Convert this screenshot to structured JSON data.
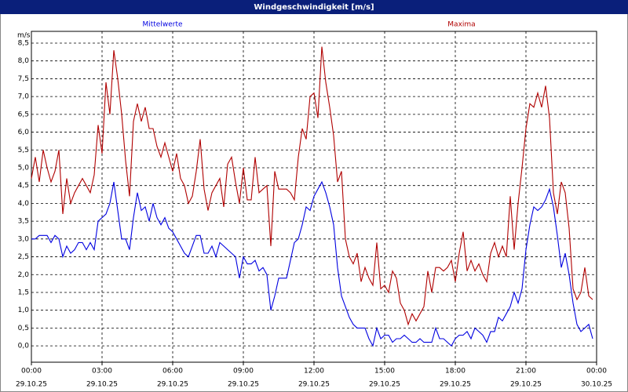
{
  "chart_data": {
    "type": "line",
    "title": "Windgeschwindigkeit [m/s]",
    "y_label": "m/s",
    "x": [
      0,
      10,
      20,
      30,
      40,
      50,
      60,
      70,
      80,
      90,
      100,
      110,
      120,
      130,
      140,
      150,
      160,
      170,
      180,
      190,
      200,
      210,
      220,
      230,
      240,
      250,
      260,
      270,
      280,
      290,
      300,
      310,
      320,
      330,
      340,
      350,
      360,
      370,
      380,
      390,
      400,
      410,
      420,
      430,
      440,
      450,
      460,
      470,
      480,
      490,
      500,
      510,
      520,
      530,
      540,
      550,
      560,
      570,
      580,
      590,
      600,
      610,
      620,
      630,
      640,
      650,
      660,
      670,
      680,
      690,
      700,
      710,
      720,
      730,
      740,
      750,
      760,
      770,
      780,
      790,
      800,
      810,
      820,
      830,
      840,
      850,
      860,
      870,
      880,
      890,
      900,
      910,
      920,
      930,
      940,
      950,
      960,
      970,
      980,
      990,
      1000,
      1010,
      1020,
      1030,
      1040,
      1050,
      1060,
      1070,
      1080,
      1090,
      1100,
      1110,
      1120,
      1130,
      1140,
      1150,
      1160,
      1170,
      1180,
      1190,
      1200,
      1210,
      1220,
      1230,
      1240,
      1250,
      1260,
      1270,
      1280,
      1290,
      1300,
      1310,
      1320,
      1330,
      1340,
      1350,
      1360,
      1370,
      1380,
      1390,
      1400,
      1410,
      1420,
      1430,
      1440
    ],
    "series": [
      {
        "name": "Mittelwerte",
        "color": "#0000e0",
        "values": [
          3.0,
          3.0,
          3.1,
          3.1,
          3.1,
          2.9,
          3.1,
          3.0,
          2.5,
          2.8,
          2.6,
          2.7,
          2.9,
          2.9,
          2.7,
          2.9,
          2.7,
          3.5,
          3.6,
          3.7,
          4.0,
          4.6,
          3.8,
          3.0,
          3.0,
          2.7,
          3.6,
          4.3,
          3.8,
          3.9,
          3.5,
          4.0,
          3.6,
          3.4,
          3.6,
          3.3,
          3.2,
          3.0,
          2.8,
          2.6,
          2.5,
          2.8,
          3.1,
          3.1,
          2.6,
          2.6,
          2.8,
          2.5,
          2.9,
          2.8,
          2.7,
          2.6,
          2.5,
          1.9,
          2.5,
          2.3,
          2.3,
          2.4,
          2.1,
          2.2,
          2.0,
          1.0,
          1.4,
          1.9,
          1.9,
          1.9,
          2.4,
          2.9,
          3.0,
          3.4,
          3.9,
          3.8,
          4.2,
          4.4,
          4.6,
          4.3,
          3.9,
          3.4,
          2.2,
          1.4,
          1.1,
          0.8,
          0.6,
          0.5,
          0.5,
          0.5,
          0.2,
          0.0,
          0.5,
          0.2,
          0.3,
          0.3,
          0.1,
          0.2,
          0.2,
          0.3,
          0.2,
          0.1,
          0.1,
          0.2,
          0.1,
          0.1,
          0.1,
          0.5,
          0.2,
          0.2,
          0.1,
          0.0,
          0.2,
          0.3,
          0.3,
          0.4,
          0.2,
          0.5,
          0.4,
          0.3,
          0.1,
          0.4,
          0.4,
          0.8,
          0.7,
          0.9,
          1.1,
          1.5,
          1.2,
          1.6,
          2.7,
          3.4,
          3.9,
          3.8,
          3.9,
          4.1,
          4.4,
          3.9,
          3.1,
          2.2,
          2.6,
          2.0,
          1.2,
          0.6,
          0.4,
          0.5,
          0.6,
          0.2,
          null
        ]
      },
      {
        "name": "Maxima",
        "color": "#b00000",
        "values": [
          4.7,
          5.3,
          4.6,
          5.5,
          5.0,
          4.6,
          4.9,
          5.5,
          3.7,
          4.7,
          4.0,
          4.3,
          4.5,
          4.7,
          4.5,
          4.3,
          4.8,
          6.2,
          5.4,
          7.4,
          6.5,
          8.3,
          7.5,
          6.5,
          5.2,
          4.2,
          6.3,
          6.8,
          6.3,
          6.7,
          6.1,
          6.1,
          5.6,
          5.3,
          5.7,
          5.3,
          4.9,
          5.4,
          4.7,
          4.5,
          4.0,
          4.2,
          4.9,
          5.8,
          4.4,
          3.8,
          4.3,
          4.5,
          4.7,
          3.9,
          5.1,
          5.3,
          4.6,
          4.0,
          5.0,
          4.1,
          4.1,
          5.3,
          4.3,
          4.4,
          4.5,
          2.8,
          4.9,
          4.4,
          4.4,
          4.4,
          4.3,
          4.1,
          5.3,
          6.1,
          5.8,
          7.0,
          7.1,
          6.4,
          8.4,
          7.4,
          6.7,
          5.9,
          4.6,
          4.9,
          3.0,
          2.5,
          2.3,
          2.6,
          1.8,
          2.2,
          1.9,
          1.7,
          2.9,
          1.6,
          1.7,
          1.5,
          2.1,
          1.9,
          1.2,
          1.0,
          0.6,
          0.9,
          0.7,
          0.9,
          1.1,
          2.1,
          1.5,
          2.2,
          2.2,
          2.1,
          2.2,
          2.4,
          1.8,
          2.6,
          3.2,
          2.1,
          2.4,
          2.1,
          2.3,
          2.0,
          1.8,
          2.6,
          2.9,
          2.5,
          2.8,
          2.5,
          4.2,
          2.7,
          4.0,
          5.0,
          6.1,
          6.8,
          6.7,
          7.1,
          6.7,
          7.3,
          6.4,
          4.3,
          3.7,
          4.6,
          4.3,
          3.3,
          1.6,
          1.3,
          1.5,
          2.2,
          1.4,
          1.3,
          null
        ]
      }
    ],
    "xlim": [
      0,
      1440
    ],
    "xticks": [
      {
        "value": 0,
        "label": "00:00"
      },
      {
        "value": 180,
        "label": "03:00"
      },
      {
        "value": 360,
        "label": "06:00"
      },
      {
        "value": 540,
        "label": "09:00"
      },
      {
        "value": 720,
        "label": "12:00"
      },
      {
        "value": 900,
        "label": "15:00"
      },
      {
        "value": 1080,
        "label": "18:00"
      },
      {
        "value": 1260,
        "label": "21:00"
      },
      {
        "value": 1440,
        "label": "00:00"
      }
    ],
    "xtick_dates": [
      "29.10.25",
      "29.10.25",
      "29.10.25",
      "29.10.25",
      "29.10.25",
      "29.10.25",
      "29.10.25",
      "29.10.25",
      "30.10.25"
    ],
    "ylim": [
      -0.46,
      8.83
    ],
    "yticks": [
      {
        "value": 0,
        "label": "0,0"
      },
      {
        "value": 0.5,
        "label": "0,5"
      },
      {
        "value": 1,
        "label": "1,0"
      },
      {
        "value": 1.5,
        "label": "1,5"
      },
      {
        "value": 2,
        "label": "2,0"
      },
      {
        "value": 2.5,
        "label": "2,5"
      },
      {
        "value": 3,
        "label": "3,0"
      },
      {
        "value": 3.5,
        "label": "3,5"
      },
      {
        "value": 4,
        "label": "4,0"
      },
      {
        "value": 4.5,
        "label": "4,5"
      },
      {
        "value": 5,
        "label": "5,0"
      },
      {
        "value": 5.5,
        "label": "5,5"
      },
      {
        "value": 6,
        "label": "6,0"
      },
      {
        "value": 6.5,
        "label": "6,5"
      },
      {
        "value": 7,
        "label": "7,0"
      },
      {
        "value": 7.5,
        "label": "7,5"
      },
      {
        "value": 8,
        "label": "8,0"
      },
      {
        "value": 8.5,
        "label": "8,5"
      }
    ],
    "grid": true
  }
}
